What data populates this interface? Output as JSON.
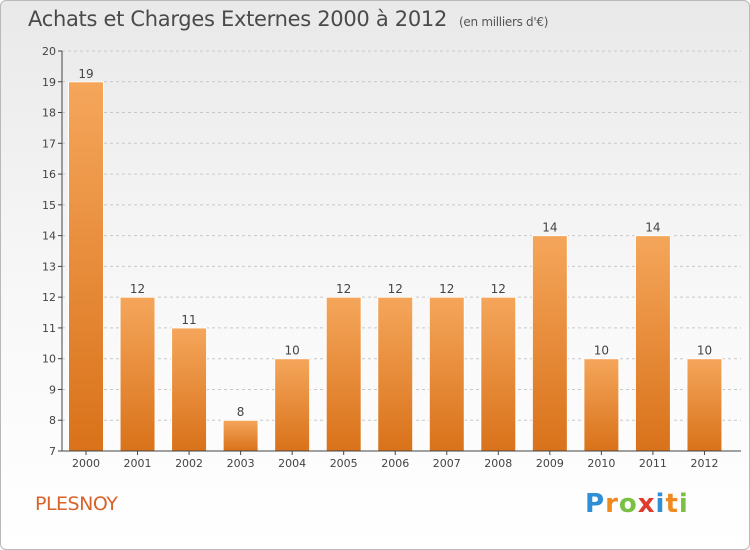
{
  "title": "Achats et Charges Externes 2000 à 2012",
  "subtitle": "(en milliers d'€)",
  "commune": "PLESNOY",
  "logo": {
    "text": "Proxiti",
    "letters": [
      {
        "ch": "P",
        "color": "#2f8fd6"
      },
      {
        "ch": "r",
        "color": "#f08a1f"
      },
      {
        "ch": "o",
        "color": "#7ac143"
      },
      {
        "ch": "x",
        "color": "#e23b2e"
      },
      {
        "ch": "i",
        "color": "#2f8fd6"
      },
      {
        "ch": "t",
        "color": "#f08a1f"
      },
      {
        "ch": "i",
        "color": "#7ac143"
      }
    ]
  },
  "colors": {
    "bar_top": "#f5a65b",
    "bar_bottom": "#d9721a",
    "axis": "#444444",
    "grid": "#c8c8c8",
    "text": "#444444"
  },
  "chart_data": {
    "type": "bar",
    "categories": [
      "2000",
      "2001",
      "2002",
      "2003",
      "2004",
      "2005",
      "2006",
      "2007",
      "2008",
      "2009",
      "2010",
      "2011",
      "2012"
    ],
    "values": [
      19,
      12,
      11,
      8,
      10,
      12,
      12,
      12,
      12,
      14,
      10,
      14,
      10
    ],
    "data_labels": [
      "19",
      "12",
      "11",
      "8",
      "10",
      "12",
      "12",
      "12",
      "12",
      "14",
      "10",
      "14",
      "10"
    ],
    "title": "Achats et Charges Externes 2000 à 2012",
    "ylim": [
      7,
      20
    ],
    "yticks": [
      7,
      8,
      9,
      10,
      11,
      12,
      13,
      14,
      15,
      16,
      17,
      18,
      19,
      20
    ],
    "grid": "horizontal dashed",
    "legend": "none"
  }
}
